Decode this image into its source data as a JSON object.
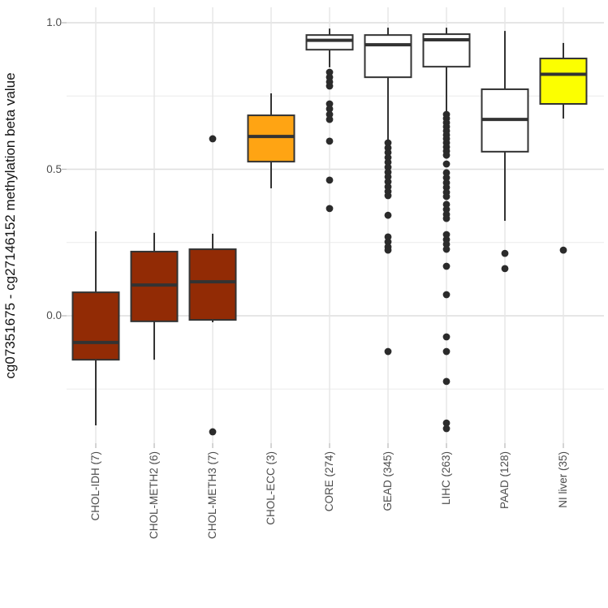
{
  "figure": {
    "background": "#ffffff",
    "panel_background": "#ffffff"
  },
  "axes": {
    "y_title": "cg07351675 - cg27146152 methylation beta value",
    "y_ticks": [
      {
        "value": 1.0,
        "label": "1.0"
      },
      {
        "value": 0.5,
        "label": "0.5"
      },
      {
        "value": 0.0,
        "label": "0.0"
      }
    ]
  },
  "chart_data": {
    "type": "boxplot",
    "title": "",
    "xlabel": "",
    "ylabel": "cg07351675 - cg27146152 methylation beta value",
    "ylim": [
      -0.44,
      1.06
    ],
    "grid": true,
    "legend": false,
    "y_major_gridlines": [
      0.0,
      0.5,
      1.0
    ],
    "y_minor_gridlines": [
      -0.25,
      0.25,
      0.75
    ],
    "stroke_color": "#333333",
    "gridline_major_color": "#dedede",
    "gridline_minor_color": "#ebebeb",
    "categories": [
      "CHOL-IDH (7)",
      "CHOL-METH2 (6)",
      "CHOL-METH3 (7)",
      "CHOL-ECC (3)",
      "CORE (274)",
      "GEAD (345)",
      "LIHC (263)",
      "PAAD (128)",
      "NI liver (35)"
    ],
    "series": [
      {
        "name": "CHOL-IDH",
        "n": 7,
        "label": "CHOL-IDH (7)",
        "fill": "#922b05",
        "stats": {
          "whisker_low": -0.374,
          "q1": -0.15,
          "median": -0.091,
          "q3": 0.08,
          "whisker_high": 0.288
        },
        "outliers": []
      },
      {
        "name": "CHOL-METH2",
        "n": 6,
        "label": "CHOL-METH2 (6)",
        "fill": "#922b05",
        "stats": {
          "whisker_low": -0.15,
          "q1": -0.019,
          "median": 0.105,
          "q3": 0.219,
          "whisker_high": 0.283
        },
        "outliers": []
      },
      {
        "name": "CHOL-METH3",
        "n": 7,
        "label": "CHOL-METH3 (7)",
        "fill": "#922b05",
        "stats": {
          "whisker_low": -0.022,
          "q1": -0.014,
          "median": 0.116,
          "q3": 0.227,
          "whisker_high": 0.28
        },
        "outliers": [
          0.604,
          -0.396
        ]
      },
      {
        "name": "CHOL-ECC",
        "n": 3,
        "label": "CHOL-ECC (3)",
        "fill": "#ffa413",
        "stats": {
          "whisker_low": 0.435,
          "q1": 0.526,
          "median": 0.612,
          "q3": 0.684,
          "whisker_high": 0.759
        },
        "outliers": []
      },
      {
        "name": "CORE",
        "n": 274,
        "label": "CORE (274)",
        "fill": "#ffffff",
        "stats": {
          "whisker_low": 0.848,
          "q1": 0.908,
          "median": 0.94,
          "q3": 0.958,
          "whisker_high": 0.98
        },
        "outliers": [
          0.831,
          0.814,
          0.798,
          0.784,
          0.723,
          0.706,
          0.687,
          0.67,
          0.596,
          0.463,
          0.366
        ]
      },
      {
        "name": "GEAD",
        "n": 345,
        "label": "GEAD (345)",
        "fill": "#ffffff",
        "stats": {
          "whisker_low": 0.601,
          "q1": 0.814,
          "median": 0.925,
          "q3": 0.958,
          "whisker_high": 0.983
        },
        "outliers": [
          0.59,
          0.573,
          0.557,
          0.54,
          0.524,
          0.507,
          0.49,
          0.474,
          0.457,
          0.44,
          0.424,
          0.41,
          0.343,
          0.269,
          0.252,
          0.235,
          0.224,
          -0.122
        ]
      },
      {
        "name": "LIHC",
        "n": 263,
        "label": "LIHC (263)",
        "fill": "#ffffff",
        "stats": {
          "whisker_low": 0.695,
          "q1": 0.85,
          "median": 0.942,
          "q3": 0.961,
          "whisker_high": 0.983
        },
        "outliers": [
          0.687,
          0.673,
          0.659,
          0.645,
          0.631,
          0.617,
          0.604,
          0.59,
          0.576,
          0.562,
          0.548,
          0.518,
          0.488,
          0.471,
          0.454,
          0.438,
          0.421,
          0.407,
          0.38,
          0.363,
          0.346,
          0.332,
          0.277,
          0.26,
          0.244,
          0.227,
          0.169,
          0.072,
          -0.072,
          -0.122,
          -0.224,
          -0.366,
          -0.385
        ]
      },
      {
        "name": "PAAD",
        "n": 128,
        "label": "PAAD (128)",
        "fill": "#ffffff",
        "stats": {
          "whisker_low": 0.324,
          "q1": 0.56,
          "median": 0.67,
          "q3": 0.773,
          "whisker_high": 0.972
        },
        "outliers": [
          0.213,
          0.161
        ]
      },
      {
        "name": "NI liver",
        "n": 35,
        "label": "NI liver (35)",
        "fill": "#fcff00",
        "stats": {
          "whisker_low": 0.673,
          "q1": 0.723,
          "median": 0.824,
          "q3": 0.878,
          "whisker_high": 0.931
        },
        "outliers": [
          0.224
        ]
      }
    ]
  }
}
